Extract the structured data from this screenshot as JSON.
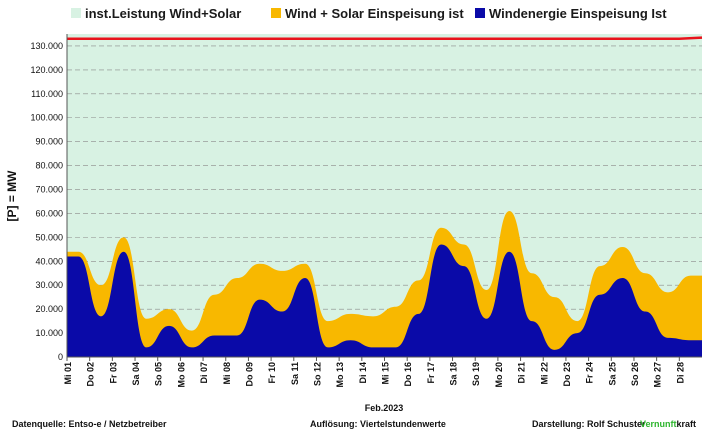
{
  "chart_data": {
    "type": "area",
    "title": "",
    "ylabel": "[P] =  MW",
    "xlabel": "Feb.2023",
    "ylim": [
      0,
      135000
    ],
    "yticks": [
      0,
      10000,
      20000,
      30000,
      40000,
      50000,
      60000,
      70000,
      80000,
      90000,
      100000,
      110000,
      120000,
      130000
    ],
    "ytick_labels": [
      "0",
      "10.000",
      "20.000",
      "30.000",
      "40.000",
      "50.000",
      "60.000",
      "70.000",
      "80.000",
      "90.000",
      "100.000",
      "110.000",
      "120.000",
      "130.000"
    ],
    "grid": true,
    "legend_position": "top",
    "categories": [
      "Mi 01",
      "Do 02",
      "Fr 03",
      "Sa 04",
      "So 05",
      "Mo 06",
      "Di 07",
      "Mi 08",
      "Do 09",
      "Fr 10",
      "Sa 11",
      "So 12",
      "Mo 13",
      "Di 14",
      "Mi 15",
      "Do 16",
      "Fr 17",
      "Sa 18",
      "So 19",
      "Mo 20",
      "Di 21",
      "Mi 22",
      "Do 23",
      "Fr 24",
      "Sa 25",
      "So 26",
      "Mo 27",
      "Di 28"
    ],
    "series": [
      {
        "name": "inst.Leistung Wind+Solar",
        "color": "#d8f2e3",
        "values": [
          133000,
          133000,
          133000,
          133000,
          133000,
          133000,
          133000,
          133000,
          133000,
          133000,
          133000,
          133000,
          133000,
          133000,
          133000,
          133000,
          133000,
          133000,
          133000,
          133000,
          133000,
          133000,
          133000,
          133000,
          133000,
          133000,
          133000,
          133500
        ]
      },
      {
        "name": "Wind + Solar Einspeisung ist",
        "color": "#f8b800",
        "values": [
          44000,
          30000,
          50000,
          16000,
          20000,
          11000,
          26000,
          33000,
          39000,
          36000,
          39000,
          15000,
          18000,
          17000,
          21000,
          32000,
          54000,
          47000,
          28000,
          61000,
          35000,
          25000,
          15000,
          38000,
          46000,
          35000,
          27000,
          34000
        ]
      },
      {
        "name": "Windenergie Einspeisung Ist",
        "color": "#0a0aa8",
        "values": [
          42000,
          17000,
          44000,
          4000,
          13000,
          4000,
          9000,
          9000,
          24000,
          19000,
          33000,
          4000,
          7000,
          4000,
          4000,
          18000,
          47000,
          38000,
          16000,
          44000,
          15000,
          3000,
          10000,
          26000,
          33000,
          19000,
          8000,
          7000
        ]
      }
    ]
  },
  "legend": {
    "item1": "inst.Leistung Wind+Solar",
    "item2": "Wind + Solar Einspeisung ist",
    "item3": "Windenergie Einspeisung Ist"
  },
  "footer": {
    "source": "Datenquelle:  Entso-e  / Netzbetreiber",
    "resolution": "Auflösung: Viertelstundenwerte",
    "author": "Darstellung:  Rolf Schuster",
    "brand_green": "Vernunft",
    "brand_black": "kraft",
    "brand_color": "#2db52d"
  },
  "colors": {
    "capacity_line": "#e8141c",
    "plot_background": "#d8f2e3"
  }
}
